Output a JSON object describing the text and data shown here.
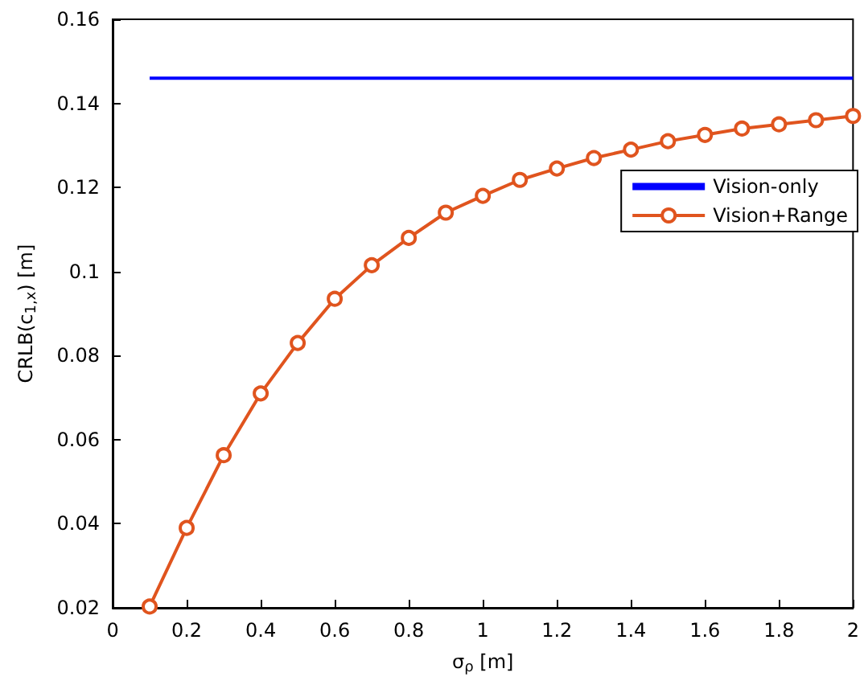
{
  "chart_data": {
    "type": "line",
    "xlabel": "σ$_{ρ}$ [m]",
    "ylabel": "CRLB(c$_{1,x}$) [m]",
    "xlim": [
      0,
      2
    ],
    "xticks": [
      0,
      0.2,
      0.4,
      0.6,
      0.8,
      1,
      1.2,
      1.4,
      1.6,
      1.8,
      2
    ],
    "ylim": [
      0.02,
      0.16
    ],
    "yticks": [
      0.02,
      0.04,
      0.06,
      0.08,
      0.1,
      0.12,
      0.14,
      0.16
    ],
    "grid": false,
    "legend": "right",
    "series": [
      {
        "name": "Vision-only",
        "color": "#0000ff",
        "marker": "none",
        "x": [
          0.1,
          2
        ],
        "values": [
          0.146,
          0.146
        ]
      },
      {
        "name": "Vision+Range",
        "color": "#e0541e",
        "marker": "circle",
        "x": [
          0.1,
          0.2,
          0.3,
          0.4,
          0.5,
          0.6,
          0.7,
          0.8,
          0.9,
          1.0,
          1.1,
          1.2,
          1.3,
          1.4,
          1.5,
          1.6,
          1.7,
          1.8,
          1.9,
          2.0
        ],
        "values": [
          0.0203,
          0.039,
          0.0563,
          0.071,
          0.083,
          0.0935,
          0.1015,
          0.108,
          0.114,
          0.118,
          0.1218,
          0.1245,
          0.127,
          0.129,
          0.131,
          0.1325,
          0.134,
          0.135,
          0.136,
          0.137
        ]
      }
    ]
  }
}
